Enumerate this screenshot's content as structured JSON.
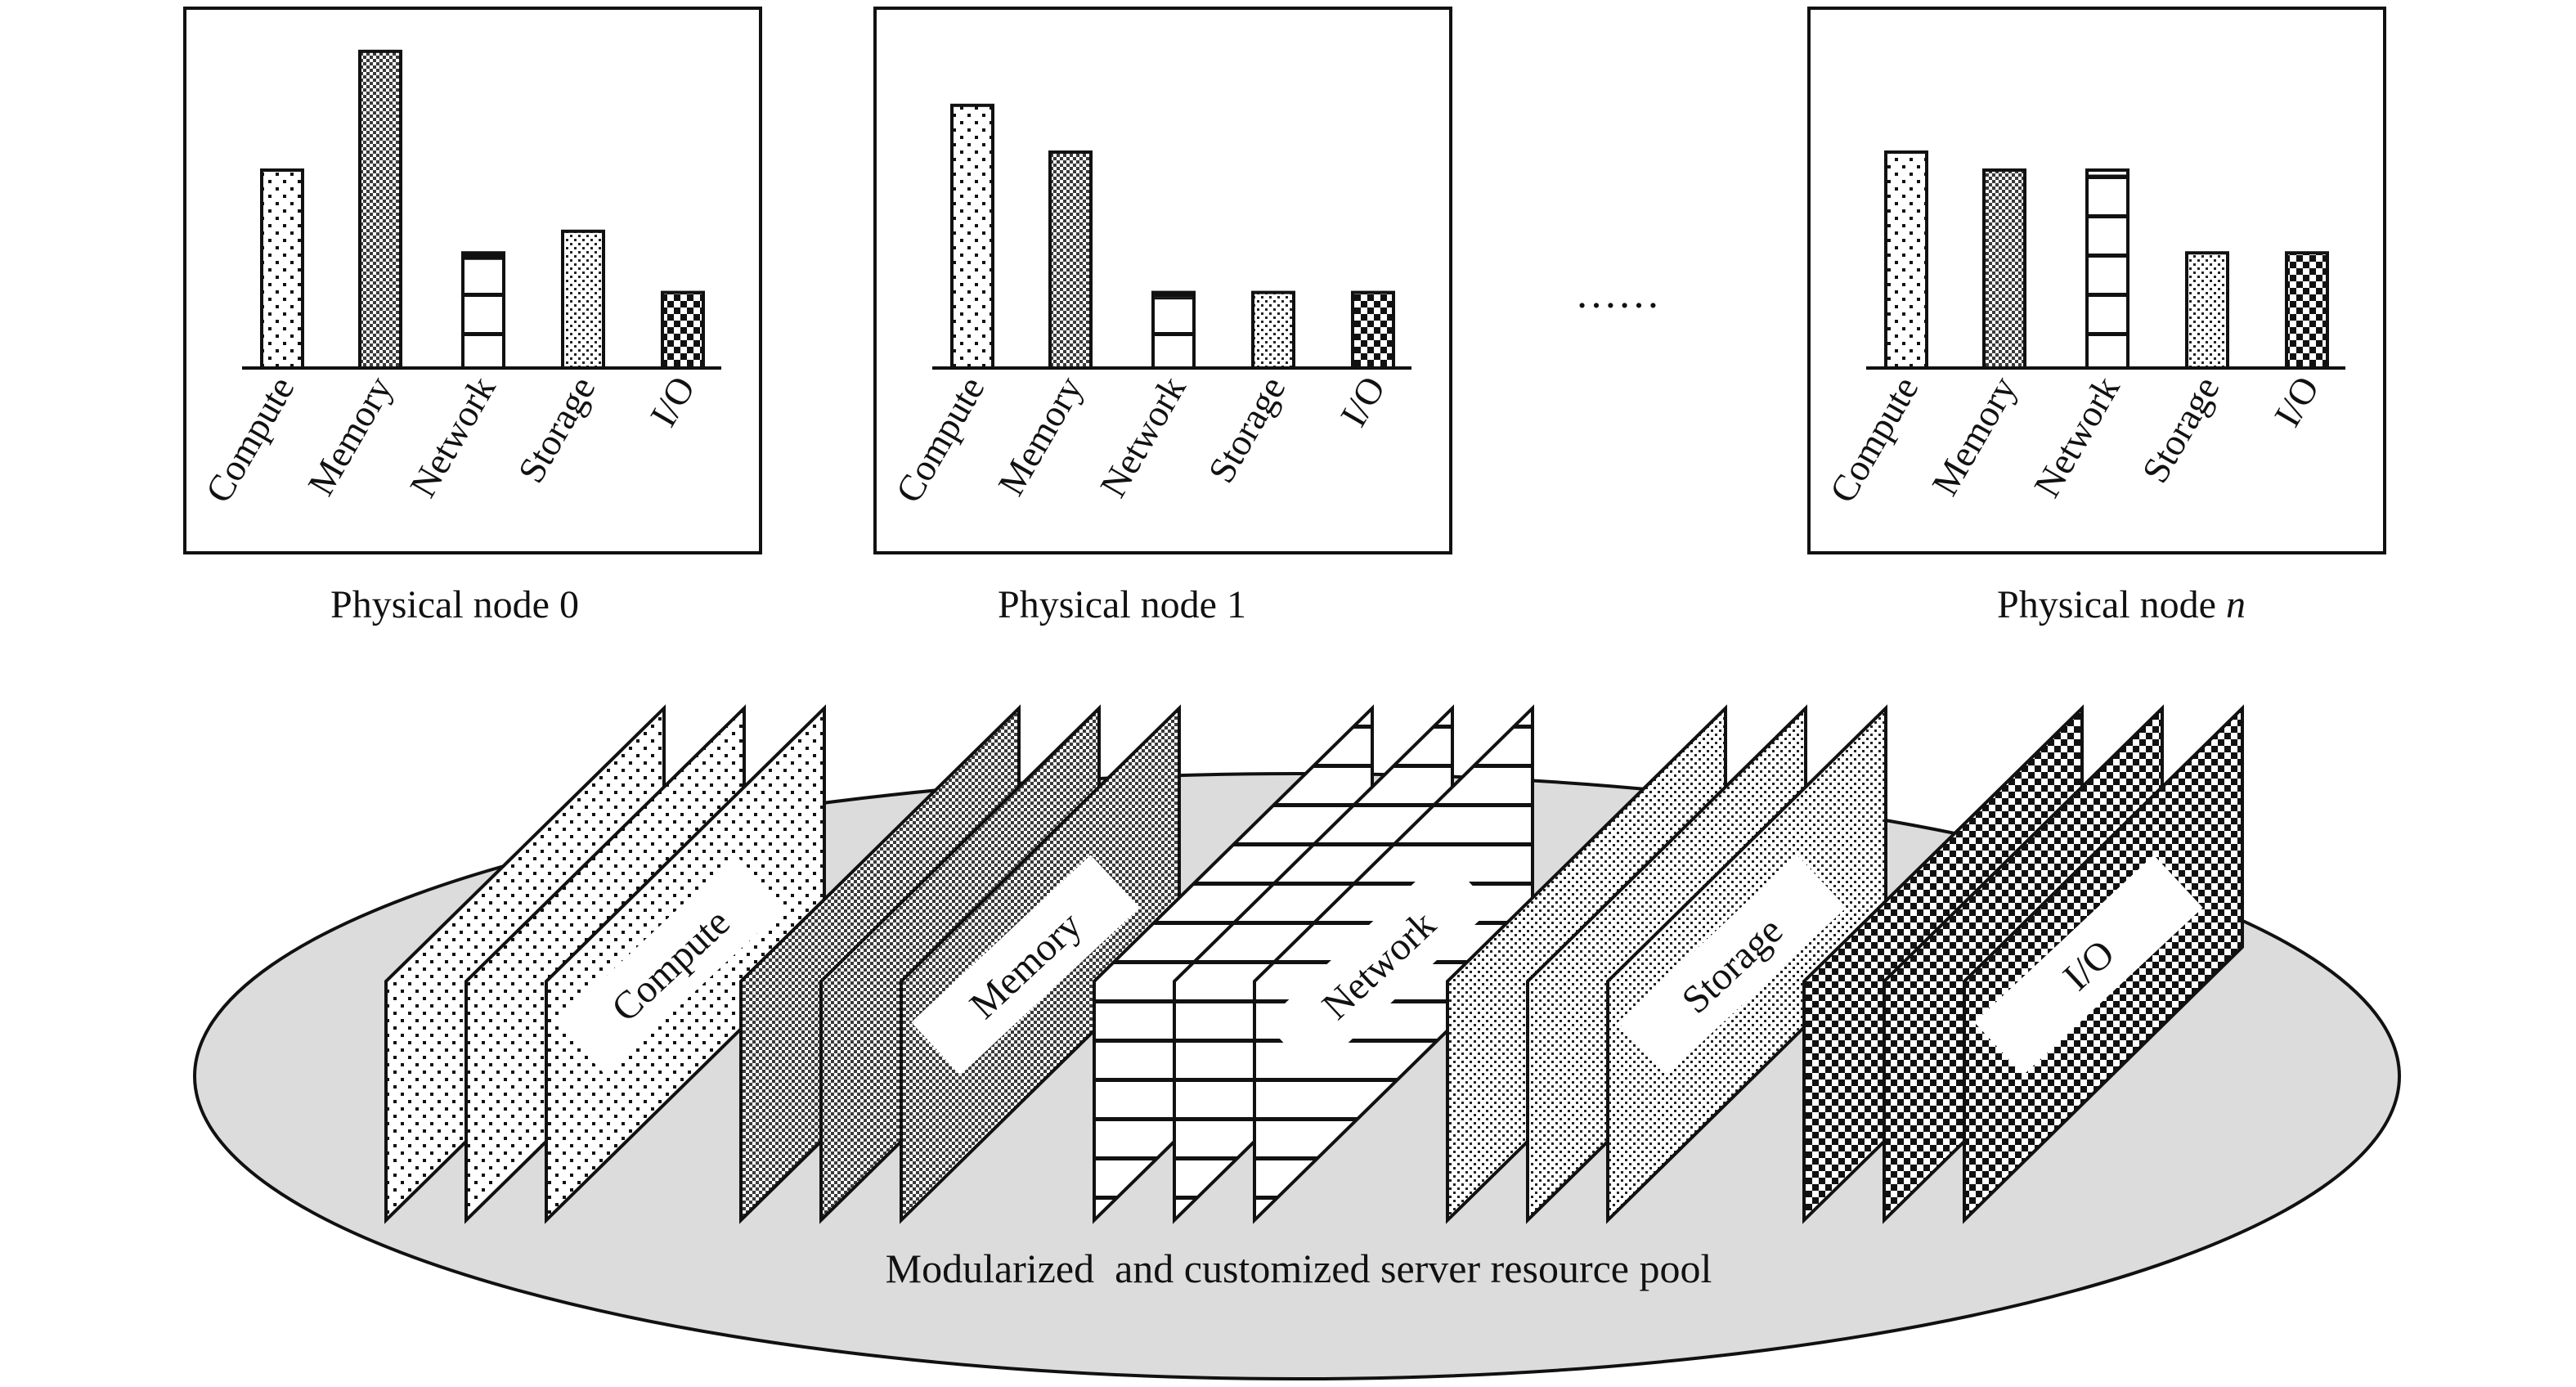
{
  "nodes": [
    {
      "label": "Physical node 0",
      "label_prefix": "Physical node ",
      "label_index": "0",
      "index_italic": false,
      "bars": [
        {
          "category": "Compute",
          "value": 0.55,
          "pattern": "compute"
        },
        {
          "category": "Memory",
          "value": 0.88,
          "pattern": "memory"
        },
        {
          "category": "Network",
          "value": 0.32,
          "pattern": "network"
        },
        {
          "category": "Storage",
          "value": 0.38,
          "pattern": "storage"
        },
        {
          "category": "I/O",
          "value": 0.21,
          "pattern": "io"
        }
      ]
    },
    {
      "label": "Physical node 1",
      "label_prefix": "Physical node ",
      "label_index": "1",
      "index_italic": false,
      "bars": [
        {
          "category": "Compute",
          "value": 0.73,
          "pattern": "compute"
        },
        {
          "category": "Memory",
          "value": 0.6,
          "pattern": "memory"
        },
        {
          "category": "Network",
          "value": 0.21,
          "pattern": "network"
        },
        {
          "category": "Storage",
          "value": 0.21,
          "pattern": "storage"
        },
        {
          "category": "I/O",
          "value": 0.21,
          "pattern": "io"
        }
      ]
    },
    {
      "label": "Physical node n",
      "label_prefix": "Physical node ",
      "label_index": "n",
      "index_italic": true,
      "bars": [
        {
          "category": "Compute",
          "value": 0.6,
          "pattern": "compute"
        },
        {
          "category": "Memory",
          "value": 0.55,
          "pattern": "memory"
        },
        {
          "category": "Network",
          "value": 0.55,
          "pattern": "network"
        },
        {
          "category": "Storage",
          "value": 0.32,
          "pattern": "storage"
        },
        {
          "category": "I/O",
          "value": 0.32,
          "pattern": "io"
        }
      ]
    }
  ],
  "ellipsis": "……",
  "pool": {
    "caption": "Modularized  and customized server resource pool",
    "fill_color": "#dcdcdc",
    "stacks": [
      {
        "name": "compute",
        "label": "Compute",
        "pattern": "compute"
      },
      {
        "name": "memory",
        "label": "Memory",
        "pattern": "memory"
      },
      {
        "name": "network",
        "label": "Network",
        "pattern": "network"
      },
      {
        "name": "storage",
        "label": "Storage",
        "pattern": "storage"
      },
      {
        "name": "io",
        "label": "I/O",
        "pattern": "io"
      }
    ]
  }
}
